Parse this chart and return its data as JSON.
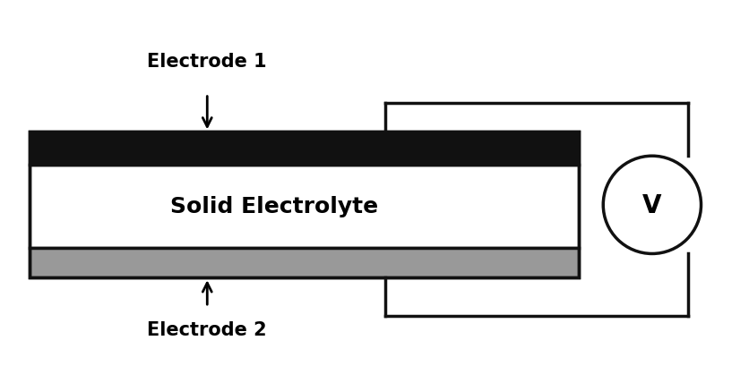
{
  "fig_width": 8.36,
  "fig_height": 4.1,
  "dpi": 100,
  "bg_color": "#ffffff",
  "electrode1_label": "Electrode 1",
  "electrode2_label": "Electrode 2",
  "electrolyte_label": "Solid Electrolyte",
  "voltmeter_label": "V",
  "black_electrode_color": "#111111",
  "gray_electrode_color": "#999999",
  "electrolyte_color": "#ffffff",
  "border_color": "#111111",
  "wire_color": "#111111",
  "label_fontsize": 15,
  "voltmeter_fontsize": 20,
  "electrolyte_fontsize": 18
}
